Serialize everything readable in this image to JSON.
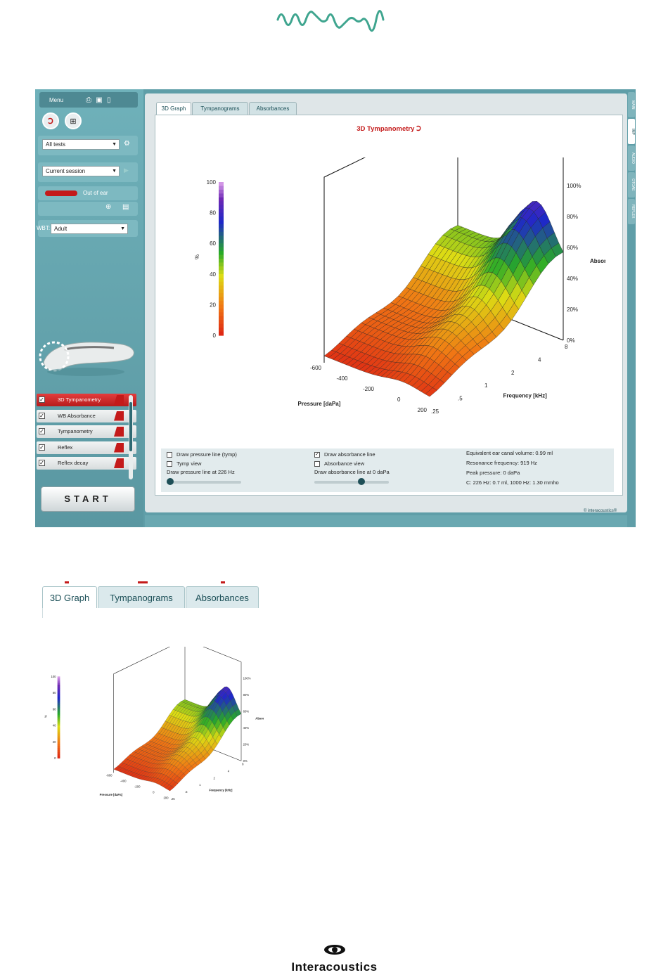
{
  "brand": {
    "name": "Interacoustics",
    "copyright": "© interacoustics®"
  },
  "sidebar": {
    "menu_label": "Menu",
    "test_filter": "All tests",
    "session": "Current session",
    "probe_status": "Out of ear",
    "wbt_label": "WBT:",
    "wbt_value": "Adult",
    "tests": [
      {
        "label": "3D Tympanometry",
        "checked": true,
        "active": true
      },
      {
        "label": "WB Absorbance",
        "checked": true,
        "active": false
      },
      {
        "label": "Tympanometry",
        "checked": true,
        "active": false
      },
      {
        "label": "Reflex",
        "checked": true,
        "active": false
      },
      {
        "label": "Reflex decay",
        "checked": true,
        "active": false
      }
    ],
    "start_label": "START"
  },
  "tabs": [
    "3D Graph",
    "Tympanograms",
    "Absorbances"
  ],
  "active_tab": "3D Graph",
  "graph": {
    "title": "3D Tympanometry"
  },
  "controls": {
    "draw_pressure_line": "Draw pressure line (tymp)",
    "tymp_view": "Tymp view",
    "pressure_line_text": "Draw pressure line at 226 Hz",
    "draw_absorbance_line": "Draw absorbance line",
    "absorbance_view": "Absorbance view",
    "absorbance_line_text": "Draw absorbance line at 0 daPa",
    "pressure_slider_value": 0.0,
    "absorbance_slider_value": 0.65
  },
  "results": {
    "ear_canal_volume": "Equivalent ear canal volume: 0.99 ml",
    "resonance": "Resonance frequency: 919 Hz",
    "peak_pressure": "Peak pressure: 0 daPa",
    "compliance": "C: 226 Hz: 0.7 ml, 1000 Hz: 1.30 mmho"
  },
  "right_tabs": [
    "MAIN",
    "IMP",
    "AUDIO",
    "OTOAE",
    "REFLEX"
  ],
  "chart_data": [
    {
      "type": "surface",
      "colorbar": {
        "ticks": [
          "100",
          "80",
          "60",
          "40",
          "20",
          "0"
        ],
        "unit": "%"
      },
      "x_label": "Pressure [daPa]",
      "x_ticks": [
        "-600",
        "-400",
        "-200",
        "0",
        "200"
      ],
      "y_label": "Frequency [kHz]",
      "y_ticks": [
        ".25",
        ".5",
        "1",
        "2",
        "4",
        "8"
      ],
      "z_label": "Absorbance",
      "z_ticks": [
        "0%",
        "20%",
        "40%",
        "60%",
        "80%",
        "100%"
      ]
    },
    {
      "type": "surface",
      "colorbar": {
        "ticks": [
          "100",
          "80",
          "60",
          "40",
          "20",
          "0"
        ],
        "unit": "%"
      },
      "x_label": "Pressure [daPa]",
      "x_ticks": [
        "-600",
        "-400",
        "-200",
        "0",
        "200"
      ],
      "y_label": "Frequency [kHz]",
      "y_ticks": [
        ".25",
        ".5",
        "1",
        "2",
        "4",
        "8"
      ],
      "z_label": "Absorbance",
      "z_ticks": [
        "0%",
        "20%",
        "40%",
        "60%",
        "80%",
        "100%"
      ]
    }
  ]
}
